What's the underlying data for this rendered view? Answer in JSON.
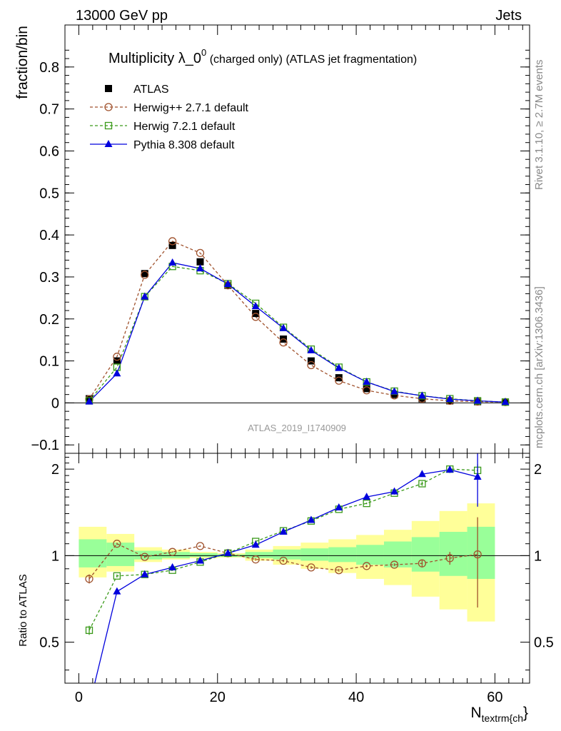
{
  "header": {
    "left": "13000 GeV pp",
    "right": "Jets"
  },
  "side_labels": {
    "rivet": "Rivet 3.1.10, ≥ 2.7M events",
    "mcplots": "mcplots.cern.ch [arXiv:1306.3436]"
  },
  "watermark": "ATLAS_2019_I1740909",
  "colors": {
    "atlas": "#000000",
    "herwigpp": "#a0522d",
    "herwig7": "#3a9a1a",
    "pythia": "#0000dd",
    "band_yellow": "#ffff99",
    "band_green": "#99ff99"
  },
  "chart_data": [
    {
      "type": "line",
      "title_main": "Multiplicity λ_0",
      "title_sup": "0",
      "title_rest": " (charged only) (ATLAS jet fragmentation)",
      "ylabel": "fraction/bin",
      "xlabel": "",
      "xlim": [
        -2,
        65
      ],
      "ylim": [
        -0.12,
        0.9
      ],
      "yticks": [
        -0.1,
        0,
        0.1,
        0.2,
        0.3,
        0.4,
        0.5,
        0.6,
        0.7,
        0.8
      ],
      "ytick_labels": [
        "−0.1",
        "0",
        "0.1",
        "0.2",
        "0.3",
        "0.4",
        "0.5",
        "0.6",
        "0.7",
        "0.8"
      ],
      "x": [
        1.5,
        5.5,
        9.5,
        13.5,
        17.5,
        21.5,
        25.5,
        29.5,
        33.5,
        37.5,
        41.5,
        45.5,
        49.5,
        53.5,
        57.5,
        61.5
      ],
      "series": [
        {
          "name": "ATLAS",
          "style": "data",
          "values": [
            0.01,
            0.1,
            0.308,
            0.375,
            0.336,
            0.28,
            0.213,
            0.152,
            0.1,
            0.06,
            0.034,
            0.02,
            0.01,
            0.005,
            0.003,
            0.002
          ]
        },
        {
          "name": "Herwig++ 2.7.1 default",
          "style": "herwigpp",
          "values": [
            0.009,
            0.11,
            0.305,
            0.385,
            0.357,
            0.28,
            0.205,
            0.144,
            0.09,
            0.053,
            0.03,
            0.018,
            0.01,
            0.005,
            0.003,
            0.002
          ]
        },
        {
          "name": "Herwig 7.2.1 default",
          "style": "herwig7",
          "values": [
            0.005,
            0.085,
            0.253,
            0.325,
            0.315,
            0.284,
            0.237,
            0.18,
            0.128,
            0.085,
            0.05,
            0.028,
            0.017,
            0.01,
            0.005,
            0.002
          ]
        },
        {
          "name": "Pythia 8.308 default",
          "style": "pythia",
          "values": [
            0.003,
            0.07,
            0.253,
            0.334,
            0.32,
            0.283,
            0.23,
            0.178,
            0.125,
            0.083,
            0.05,
            0.027,
            0.017,
            0.009,
            0.005,
            0.002
          ]
        }
      ]
    },
    {
      "type": "line",
      "title": "",
      "ylabel": "Ratio to ATLAS",
      "xlabel": "N",
      "xlabel_sub": "textrm{ch",
      "xlabel_tail": "}",
      "xlim": [
        -2,
        65
      ],
      "ylim": [
        0.36,
        2.27
      ],
      "xticks": [
        0,
        20,
        40,
        60
      ],
      "yticks": [
        0.5,
        1,
        2
      ],
      "ytick_labels": [
        "0.5",
        "1",
        "2"
      ],
      "x": [
        1.5,
        5.5,
        9.5,
        13.5,
        17.5,
        21.5,
        25.5,
        29.5,
        33.5,
        37.5,
        41.5,
        45.5,
        49.5,
        53.5,
        57.5
      ],
      "bin_edges": [
        0,
        4,
        8,
        12,
        16,
        20,
        24,
        28,
        32,
        36,
        40,
        44,
        48,
        52,
        56,
        60
      ],
      "band_yellow": [
        [
          0.84,
          1.26
        ],
        [
          0.88,
          1.19
        ],
        [
          0.95,
          1.07
        ],
        [
          0.97,
          1.05
        ],
        [
          0.98,
          1.03
        ],
        [
          0.985,
          1.02
        ],
        [
          0.96,
          1.05
        ],
        [
          0.93,
          1.08
        ],
        [
          0.9,
          1.11
        ],
        [
          0.87,
          1.14
        ],
        [
          0.83,
          1.18
        ],
        [
          0.79,
          1.23
        ],
        [
          0.72,
          1.32
        ],
        [
          0.65,
          1.43
        ],
        [
          0.59,
          1.52
        ]
      ],
      "band_green": [
        [
          0.91,
          1.14
        ],
        [
          0.92,
          1.11
        ],
        [
          0.97,
          1.04
        ],
        [
          0.98,
          1.03
        ],
        [
          0.99,
          1.02
        ],
        [
          0.99,
          1.01
        ],
        [
          0.98,
          1.03
        ],
        [
          0.97,
          1.05
        ],
        [
          0.96,
          1.06
        ],
        [
          0.95,
          1.07
        ],
        [
          0.93,
          1.09
        ],
        [
          0.91,
          1.12
        ],
        [
          0.88,
          1.16
        ],
        [
          0.85,
          1.21
        ],
        [
          0.83,
          1.26
        ]
      ],
      "series": [
        {
          "name": "Herwig++ 2.7.1 default",
          "style": "herwigpp",
          "values": [
            0.83,
            1.1,
            0.99,
            1.03,
            1.08,
            1.02,
            0.97,
            0.96,
            0.91,
            0.89,
            0.92,
            0.93,
            0.94,
            0.98,
            1.01
          ],
          "errors": [
            0.03,
            0.01,
            0.01,
            0.005,
            0.005,
            0.005,
            0.01,
            0.01,
            0.01,
            0.01,
            0.01,
            0.01,
            0.03,
            0.05,
            0.35
          ]
        },
        {
          "name": "Herwig 7.2.1 default",
          "style": "herwig7",
          "values": [
            0.55,
            0.85,
            0.86,
            0.89,
            0.95,
            1.02,
            1.12,
            1.22,
            1.32,
            1.45,
            1.52,
            1.65,
            1.78,
            2.0,
            1.98
          ],
          "errors": [
            0.02,
            0.01,
            0.01,
            0.005,
            0.005,
            0.005,
            0.01,
            0.01,
            0.01,
            0.01,
            0.01,
            0.02,
            0.03,
            0.05,
            0.1
          ]
        },
        {
          "name": "Pythia 8.308 default",
          "style": "pythia",
          "values": [
            0.3,
            0.75,
            0.86,
            0.91,
            0.96,
            1.02,
            1.09,
            1.21,
            1.33,
            1.47,
            1.6,
            1.67,
            1.92,
            1.99,
            1.88
          ],
          "errors": [
            0.02,
            0.01,
            0.01,
            0.005,
            0.005,
            0.005,
            0.01,
            0.01,
            0.01,
            0.01,
            0.01,
            0.02,
            0.04,
            0.05,
            0.4
          ]
        }
      ]
    }
  ]
}
